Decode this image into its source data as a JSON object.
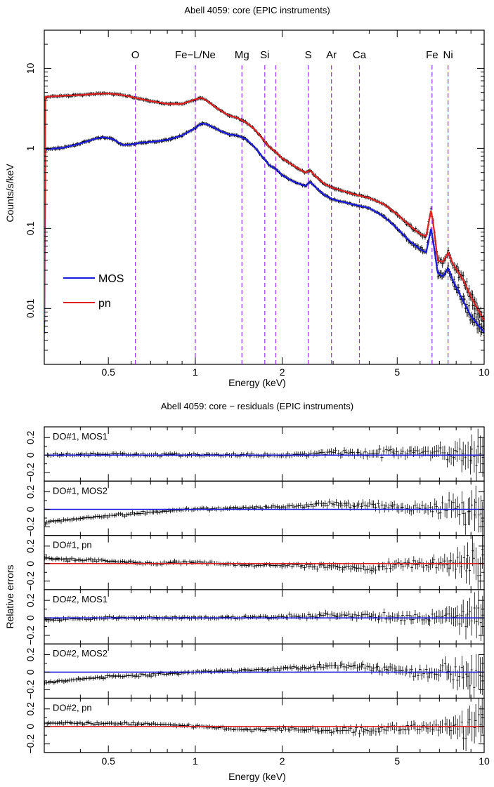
{
  "colors": {
    "mos": "#1a1adf",
    "pn": "#e02020",
    "lines": "#9b30ff",
    "data": "#000000"
  },
  "chart_data": [
    {
      "type": "line",
      "title": "Abell 4059: core (EPIC instruments)",
      "xlabel": "Energy (keV)",
      "ylabel": "Counts/s/keV",
      "x_scale": "log",
      "y_scale": "log",
      "xlim": [
        0.3,
        10
      ],
      "ylim": [
        0.002,
        30
      ],
      "x_ticks": [
        {
          "v": 0.5,
          "label": "0.5"
        },
        {
          "v": 1,
          "label": "1"
        },
        {
          "v": 2,
          "label": "2"
        },
        {
          "v": 5,
          "label": "5"
        },
        {
          "v": 10,
          "label": "10"
        }
      ],
      "y_ticks": [
        {
          "v": 0.01,
          "label": "0.01"
        },
        {
          "v": 0.1,
          "label": "0.1"
        },
        {
          "v": 1,
          "label": "1"
        },
        {
          "v": 10,
          "label": "10"
        }
      ],
      "legend": {
        "position": "bottom-left",
        "items": [
          "MOS",
          "pn"
        ]
      },
      "lines": [
        {
          "label": "O",
          "energy": 0.62
        },
        {
          "label": "Fe−L/Ne",
          "energy": 1.0
        },
        {
          "label": "Mg",
          "energy": 1.45
        },
        {
          "label": "Si",
          "energy": 1.74
        },
        {
          "label": "",
          "energy": 1.9
        },
        {
          "label": "S",
          "energy": 2.46
        },
        {
          "label": "Ar",
          "energy": 2.96
        },
        {
          "label": "Ca",
          "energy": 3.7
        },
        {
          "label": "Fe",
          "energy": 6.6
        },
        {
          "label": "Ni",
          "energy": 7.5
        }
      ],
      "series": [
        {
          "name": "MOS",
          "points": [
            [
              0.3,
              0.97
            ],
            [
              0.35,
              1.02
            ],
            [
              0.4,
              1.15
            ],
            [
              0.45,
              1.32
            ],
            [
              0.48,
              1.38
            ],
            [
              0.52,
              1.3
            ],
            [
              0.56,
              1.1
            ],
            [
              0.6,
              1.12
            ],
            [
              0.65,
              1.18
            ],
            [
              0.7,
              1.2
            ],
            [
              0.8,
              1.28
            ],
            [
              0.9,
              1.45
            ],
            [
              1.0,
              1.8
            ],
            [
              1.05,
              2.05
            ],
            [
              1.1,
              2.0
            ],
            [
              1.2,
              1.7
            ],
            [
              1.3,
              1.5
            ],
            [
              1.4,
              1.45
            ],
            [
              1.5,
              1.3
            ],
            [
              1.6,
              1.05
            ],
            [
              1.7,
              0.8
            ],
            [
              1.8,
              0.62
            ],
            [
              1.9,
              0.55
            ],
            [
              2.0,
              0.46
            ],
            [
              2.2,
              0.38
            ],
            [
              2.4,
              0.34
            ],
            [
              2.5,
              0.38
            ],
            [
              2.6,
              0.33
            ],
            [
              2.8,
              0.26
            ],
            [
              3.0,
              0.23
            ],
            [
              3.5,
              0.2
            ],
            [
              4.0,
              0.18
            ],
            [
              4.5,
              0.14
            ],
            [
              5.0,
              0.1
            ],
            [
              5.5,
              0.07
            ],
            [
              6.0,
              0.055
            ],
            [
              6.3,
              0.05
            ],
            [
              6.55,
              0.1
            ],
            [
              6.7,
              0.06
            ],
            [
              6.9,
              0.028
            ],
            [
              7.2,
              0.025
            ],
            [
              7.5,
              0.032
            ],
            [
              7.8,
              0.022
            ],
            [
              8.5,
              0.012
            ],
            [
              9.0,
              0.008
            ],
            [
              10.0,
              0.005
            ]
          ]
        },
        {
          "name": "pn",
          "points": [
            [
              0.3,
              4.4
            ],
            [
              0.35,
              4.55
            ],
            [
              0.4,
              4.65
            ],
            [
              0.45,
              4.8
            ],
            [
              0.5,
              4.85
            ],
            [
              0.55,
              4.7
            ],
            [
              0.6,
              4.4
            ],
            [
              0.7,
              3.9
            ],
            [
              0.8,
              3.6
            ],
            [
              0.9,
              3.6
            ],
            [
              1.0,
              4.1
            ],
            [
              1.05,
              4.3
            ],
            [
              1.1,
              3.9
            ],
            [
              1.2,
              3.1
            ],
            [
              1.3,
              2.6
            ],
            [
              1.4,
              2.4
            ],
            [
              1.5,
              2.1
            ],
            [
              1.6,
              1.75
            ],
            [
              1.7,
              1.35
            ],
            [
              1.8,
              1.05
            ],
            [
              1.9,
              0.9
            ],
            [
              2.0,
              0.75
            ],
            [
              2.2,
              0.6
            ],
            [
              2.4,
              0.5
            ],
            [
              2.5,
              0.53
            ],
            [
              2.6,
              0.45
            ],
            [
              2.8,
              0.36
            ],
            [
              3.0,
              0.32
            ],
            [
              3.5,
              0.27
            ],
            [
              4.0,
              0.24
            ],
            [
              4.5,
              0.2
            ],
            [
              5.0,
              0.15
            ],
            [
              5.5,
              0.11
            ],
            [
              6.0,
              0.085
            ],
            [
              6.3,
              0.08
            ],
            [
              6.55,
              0.17
            ],
            [
              6.7,
              0.1
            ],
            [
              6.9,
              0.04
            ],
            [
              7.2,
              0.038
            ],
            [
              7.5,
              0.05
            ],
            [
              7.8,
              0.036
            ],
            [
              8.5,
              0.022
            ],
            [
              9.0,
              0.014
            ],
            [
              10.0,
              0.007
            ]
          ]
        }
      ]
    },
    {
      "type": "scatter",
      "title": "Abell 4059: core − residuals (EPIC instruments)",
      "xlabel": "Energy (keV)",
      "ylabel": "Relative errors",
      "x_scale": "log",
      "xlim": [
        0.3,
        10
      ],
      "ylim": [
        -0.3,
        0.3
      ],
      "x_ticks": [
        {
          "v": 0.5,
          "label": "0.5"
        },
        {
          "v": 1,
          "label": "1"
        },
        {
          "v": 2,
          "label": "2"
        },
        {
          "v": 5,
          "label": "5"
        },
        {
          "v": 10,
          "label": "10"
        }
      ],
      "y_ticks": [
        {
          "v": -0.2,
          "label": "−0.2"
        },
        {
          "v": 0,
          "label": "0"
        },
        {
          "v": 0.2,
          "label": "0.2"
        }
      ],
      "panels": [
        {
          "name": "DO#1, MOS1",
          "model": "mos",
          "offsets": [
            [
              0.3,
              0.0
            ],
            [
              0.5,
              0.01
            ],
            [
              1.0,
              0.0
            ],
            [
              2.0,
              0.0
            ],
            [
              3.0,
              0.03
            ],
            [
              4.0,
              0.02
            ],
            [
              6.0,
              0.04
            ],
            [
              10.0,
              0.0
            ]
          ]
        },
        {
          "name": "DO#1, MOS2",
          "model": "mos",
          "offsets": [
            [
              0.3,
              -0.15
            ],
            [
              0.5,
              -0.07
            ],
            [
              0.8,
              -0.02
            ],
            [
              1.0,
              0.0
            ],
            [
              2.0,
              0.03
            ],
            [
              3.0,
              0.06
            ],
            [
              4.0,
              0.05
            ],
            [
              6.0,
              0.02
            ],
            [
              10.0,
              0.0
            ]
          ]
        },
        {
          "name": "DO#1, pn",
          "model": "pn",
          "offsets": [
            [
              0.3,
              0.06
            ],
            [
              0.5,
              0.03
            ],
            [
              0.7,
              0.0
            ],
            [
              1.0,
              0.02
            ],
            [
              1.5,
              -0.02
            ],
            [
              2.0,
              -0.02
            ],
            [
              3.0,
              -0.04
            ],
            [
              4.0,
              -0.05
            ],
            [
              6.0,
              0.0
            ],
            [
              10.0,
              0.0
            ]
          ]
        },
        {
          "name": "DO#2, MOS1",
          "model": "mos",
          "offsets": [
            [
              0.3,
              -0.02
            ],
            [
              0.5,
              0.0
            ],
            [
              1.0,
              0.0
            ],
            [
              2.0,
              0.01
            ],
            [
              3.0,
              0.03
            ],
            [
              4.0,
              0.02
            ],
            [
              6.0,
              0.0
            ],
            [
              10.0,
              0.0
            ]
          ]
        },
        {
          "name": "DO#2, MOS2",
          "model": "mos",
          "offsets": [
            [
              0.3,
              -0.12
            ],
            [
              0.5,
              -0.05
            ],
            [
              0.8,
              -0.02
            ],
            [
              1.0,
              0.0
            ],
            [
              2.0,
              0.04
            ],
            [
              3.0,
              0.08
            ],
            [
              4.0,
              0.06
            ],
            [
              6.0,
              0.0
            ],
            [
              10.0,
              0.0
            ]
          ]
        },
        {
          "name": "DO#2, pn",
          "model": "pn",
          "offsets": [
            [
              0.3,
              0.04
            ],
            [
              0.5,
              0.03
            ],
            [
              0.8,
              0.02
            ],
            [
              1.0,
              0.0
            ],
            [
              1.5,
              -0.04
            ],
            [
              2.0,
              -0.03
            ],
            [
              3.0,
              -0.05
            ],
            [
              4.0,
              -0.04
            ],
            [
              6.0,
              0.0
            ],
            [
              10.0,
              0.0
            ]
          ]
        }
      ]
    }
  ]
}
